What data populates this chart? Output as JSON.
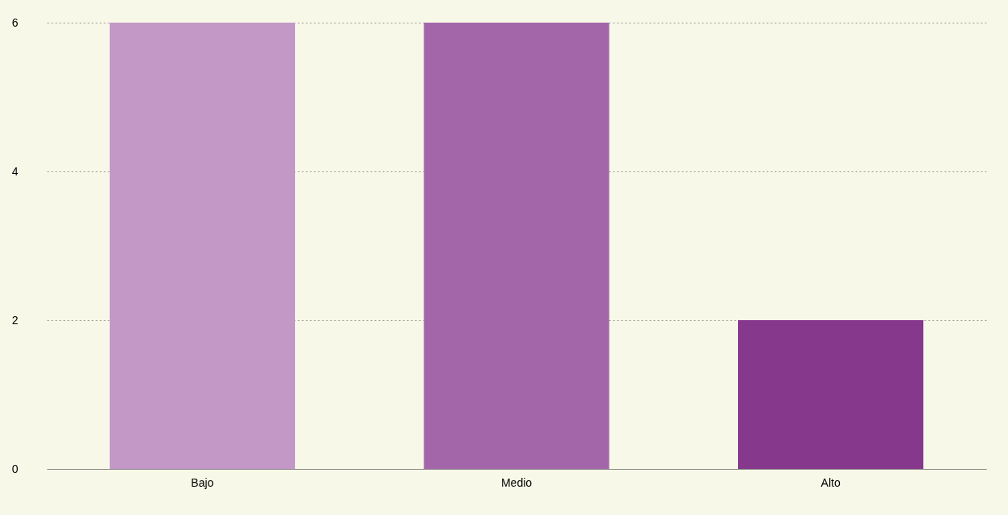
{
  "chart_data": {
    "type": "bar",
    "categories": [
      "Bajo",
      "Medio",
      "Alto"
    ],
    "values": [
      6,
      6,
      2
    ],
    "colors": [
      "#c398c7",
      "#a367a9",
      "#85388c"
    ],
    "ylim": [
      0,
      6
    ],
    "yticks": [
      0,
      2,
      4,
      6
    ],
    "grid": "y"
  }
}
